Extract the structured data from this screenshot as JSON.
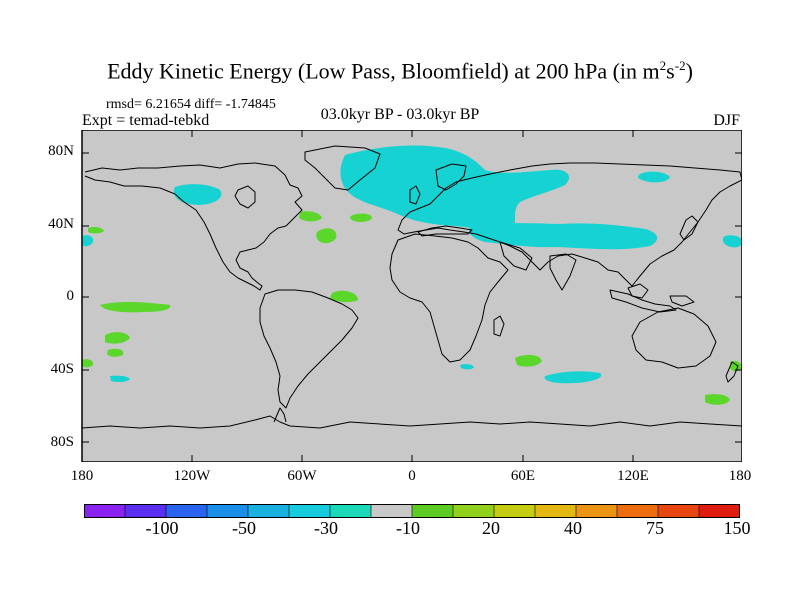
{
  "title": {
    "main": "Eddy Kinetic Energy (Low Pass, Bloomfield) at 200 hPa (in m",
    "exp1": "2",
    "mid": "s",
    "exp2": "-2",
    "close": ")"
  },
  "stats": "rmsd= 6.21654 diff= -1.74845",
  "experiment": "Expt = temad-tebkd",
  "period": "03.0kyr BP - 03.0kyr BP",
  "season": "DJF",
  "lat_ticks": [
    "80N",
    "40N",
    "0",
    "40S",
    "80S"
  ],
  "lon_ticks": [
    "180",
    "120W",
    "60W",
    "0",
    "60E",
    "120E",
    "180"
  ],
  "colorbar": {
    "colors": [
      "#8a22f0",
      "#5b2ff0",
      "#2a63ee",
      "#1b8fe8",
      "#19b2e0",
      "#17cbdd",
      "#1ad8b8",
      "#c8c8c8",
      "#5ccb24",
      "#92d01e",
      "#c4cc14",
      "#e4b812",
      "#eb9312",
      "#eb6d10",
      "#e84610",
      "#e01c10"
    ],
    "labels": [
      "-100",
      "-50",
      "-30",
      "-10",
      "20",
      "40",
      "75",
      "150"
    ]
  },
  "palette": {
    "ocean": "#c8c8c8",
    "cyan": "#17d2d2",
    "green": "#5bd62a",
    "coast": "#000000"
  }
}
